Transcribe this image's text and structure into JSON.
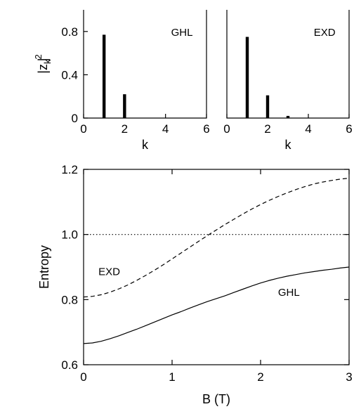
{
  "chart_data": [
    {
      "type": "bar",
      "panel": "top-left",
      "annotation": "GHL",
      "xlabel": "k",
      "ylabel": "|z",
      "ylabel_sub": "k",
      "ylabel_sup": "2",
      "xlim": [
        0,
        6
      ],
      "ylim": [
        0,
        1.0
      ],
      "xticks": [
        0,
        2,
        4,
        6
      ],
      "yticks": [
        0,
        0.4,
        0.8
      ],
      "xtick_labels": [
        "0",
        "2",
        "4",
        "6"
      ],
      "ytick_labels": [
        "0",
        "0.4",
        "0.8"
      ],
      "x": [
        1,
        2
      ],
      "values": [
        0.77,
        0.22
      ]
    },
    {
      "type": "bar",
      "panel": "top-right",
      "annotation": "EXD",
      "xlabel": "k",
      "xlim": [
        0,
        6
      ],
      "ylim": [
        0,
        1.0
      ],
      "xticks": [
        0,
        2,
        4,
        6
      ],
      "xtick_labels": [
        "0",
        "2",
        "4",
        "6"
      ],
      "x": [
        1,
        2,
        3
      ],
      "values": [
        0.75,
        0.21,
        0.02
      ]
    },
    {
      "type": "line",
      "panel": "bottom",
      "xlabel": "B (T)",
      "ylabel": "Entropy",
      "xlim": [
        0,
        3
      ],
      "ylim": [
        0.6,
        1.2
      ],
      "xticks": [
        0,
        1,
        2,
        3
      ],
      "yticks": [
        0.6,
        0.8,
        1.0,
        1.2
      ],
      "xtick_labels": [
        "0",
        "1",
        "2",
        "3"
      ],
      "ytick_labels": [
        "0.6",
        "0.8",
        "1.0",
        "1.2"
      ],
      "series": [
        {
          "name": "GHL",
          "style": "solid",
          "x": [
            0,
            0.1,
            0.2,
            0.3,
            0.4,
            0.5,
            0.6,
            0.7,
            0.8,
            0.9,
            1.0,
            1.1,
            1.2,
            1.3,
            1.4,
            1.5,
            1.6,
            1.7,
            1.8,
            1.9,
            2.0,
            2.1,
            2.2,
            2.3,
            2.4,
            2.5,
            2.6,
            2.7,
            2.8,
            2.9,
            3.0
          ],
          "values": [
            0.665,
            0.667,
            0.672,
            0.68,
            0.689,
            0.699,
            0.709,
            0.72,
            0.731,
            0.742,
            0.753,
            0.763,
            0.774,
            0.784,
            0.794,
            0.803,
            0.812,
            0.822,
            0.832,
            0.842,
            0.851,
            0.859,
            0.866,
            0.872,
            0.877,
            0.882,
            0.886,
            0.89,
            0.893,
            0.897,
            0.9
          ]
        },
        {
          "name": "EXD",
          "style": "dashed",
          "x": [
            0,
            0.1,
            0.2,
            0.3,
            0.4,
            0.5,
            0.6,
            0.7,
            0.8,
            0.9,
            1.0,
            1.1,
            1.2,
            1.3,
            1.4,
            1.5,
            1.6,
            1.7,
            1.8,
            1.9,
            2.0,
            2.1,
            2.2,
            2.3,
            2.4,
            2.5,
            2.6,
            2.7,
            2.8,
            2.9,
            3.0
          ],
          "values": [
            0.808,
            0.81,
            0.815,
            0.823,
            0.833,
            0.845,
            0.859,
            0.874,
            0.89,
            0.907,
            0.925,
            0.943,
            0.961,
            0.979,
            0.997,
            1.014,
            1.031,
            1.047,
            1.063,
            1.078,
            1.092,
            1.105,
            1.117,
            1.128,
            1.138,
            1.147,
            1.155,
            1.161,
            1.166,
            1.17,
            1.173
          ]
        },
        {
          "name": "",
          "style": "dotted",
          "x": [
            0,
            3
          ],
          "values": [
            1.0,
            1.0
          ]
        }
      ],
      "annotations": [
        "EXD",
        "GHL"
      ]
    }
  ]
}
